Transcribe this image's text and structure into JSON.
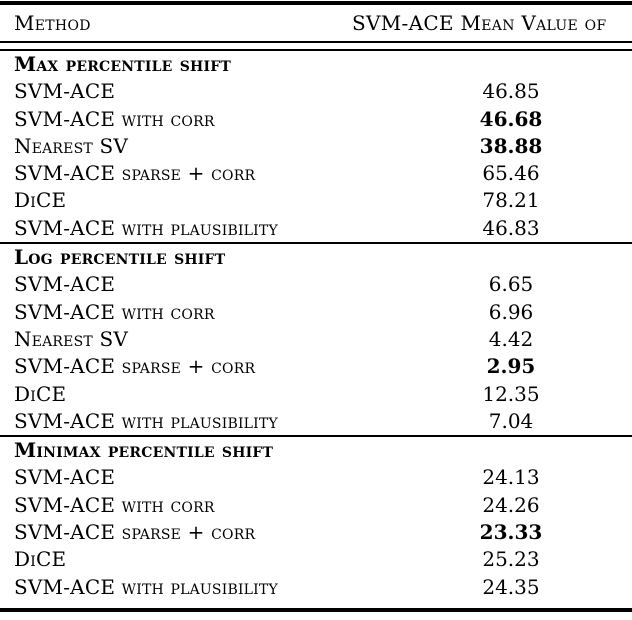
{
  "table": {
    "header": {
      "method_label": "Method",
      "value_label": "SVM-ACE Mean Value of"
    },
    "sections": [
      {
        "title": "Max percentile shift",
        "rows": [
          {
            "method": "SVM-ACE",
            "value": "46.85",
            "bold_value": false
          },
          {
            "method": "SVM-ACE with corr",
            "value": "46.68",
            "bold_value": true
          },
          {
            "method": "Nearest SV",
            "value": "38.88",
            "bold_value": true
          },
          {
            "method": "SVM-ACE sparse + corr",
            "value": "65.46",
            "bold_value": false
          },
          {
            "method": "DiCE",
            "value": "78.21",
            "bold_value": false
          },
          {
            "method": "SVM-ACE with plausibility",
            "value": "46.83",
            "bold_value": false
          }
        ]
      },
      {
        "title": "Log percentile shift",
        "rows": [
          {
            "method": "SVM-ACE",
            "value": "6.65",
            "bold_value": false
          },
          {
            "method": "SVM-ACE with corr",
            "value": "6.96",
            "bold_value": false
          },
          {
            "method": "Nearest SV",
            "value": "4.42",
            "bold_value": false
          },
          {
            "method": "SVM-ACE sparse + corr",
            "value": "2.95",
            "bold_value": true
          },
          {
            "method": "DiCE",
            "value": "12.35",
            "bold_value": false
          },
          {
            "method": "SVM-ACE with plausibility",
            "value": "7.04",
            "bold_value": false
          }
        ]
      },
      {
        "title": "Minimax percentile shift",
        "rows": [
          {
            "method": "SVM-ACE",
            "value": "24.13",
            "bold_value": false
          },
          {
            "method": "SVM-ACE with corr",
            "value": "24.26",
            "bold_value": false
          },
          {
            "method": "SVM-ACE sparse + corr",
            "value": "23.33",
            "bold_value": true
          },
          {
            "method": "DiCE",
            "value": "25.23",
            "bold_value": false
          },
          {
            "method": "SVM-ACE with plausibility",
            "value": "24.35",
            "bold_value": false
          }
        ]
      }
    ]
  },
  "colors": {
    "background": "#ffffff",
    "text": "#000000",
    "rule": "#000000"
  }
}
